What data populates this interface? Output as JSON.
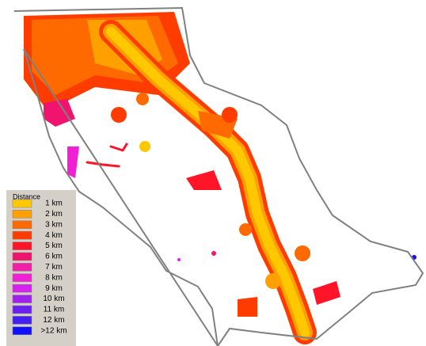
{
  "legend": {
    "title": "Distance",
    "items": [
      {
        "label": "1 km",
        "color": "#ffc800"
      },
      {
        "label": "2 km",
        "color": "#ffa000"
      },
      {
        "label": "3 km",
        "color": "#ff6a00"
      },
      {
        "label": "4 km",
        "color": "#ff3c00"
      },
      {
        "label": "5 km",
        "color": "#ff1428"
      },
      {
        "label": "6 km",
        "color": "#f0146e"
      },
      {
        "label": "7 km",
        "color": "#f020a8"
      },
      {
        "label": "8 km",
        "color": "#f020d4"
      },
      {
        "label": "9 km",
        "color": "#d820f0"
      },
      {
        "label": "10 km",
        "color": "#a020f0"
      },
      {
        "label": "11 km",
        "color": "#6c20f0"
      },
      {
        "label": "12 km",
        "color": "#4420f0"
      },
      {
        "label": ">12 km",
        "color": "#1010ff"
      }
    ]
  }
}
